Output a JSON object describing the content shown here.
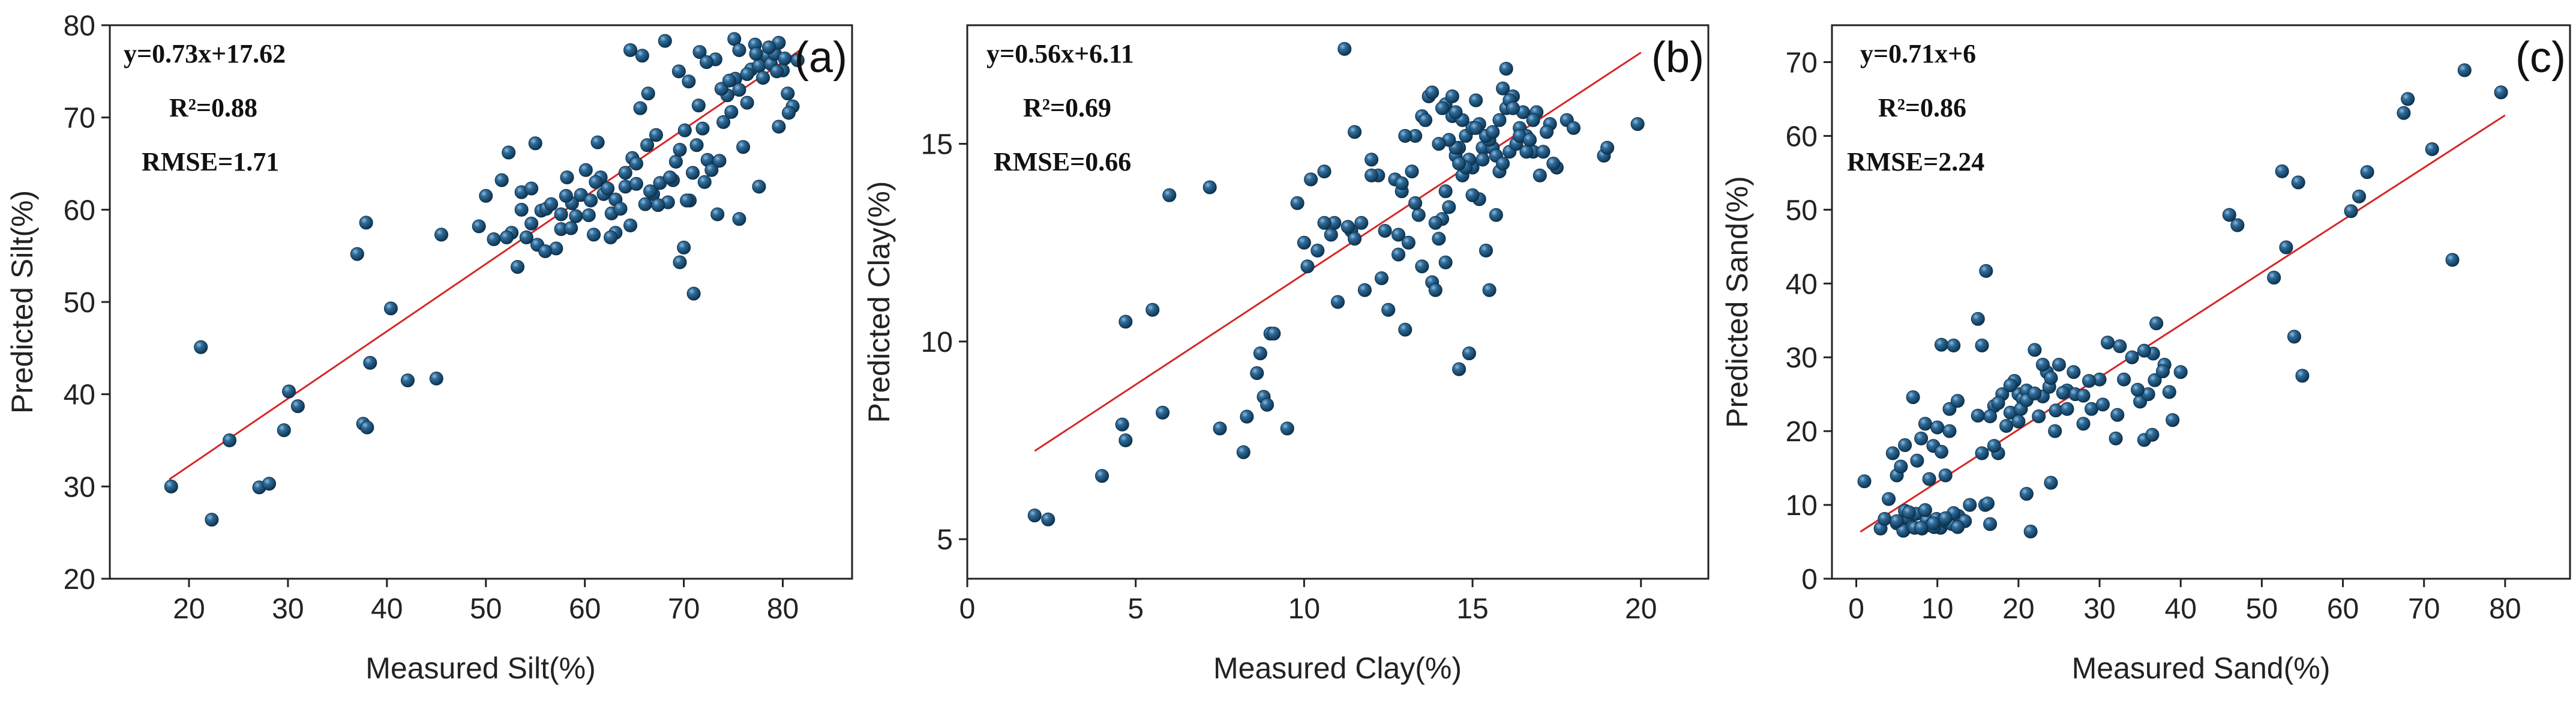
{
  "chart_data": [
    {
      "type": "scatter",
      "panel_label": "(a)",
      "xlabel": "Measured Silt(%)",
      "ylabel": "Predicted Silt(%)",
      "xlim": [
        12,
        87
      ],
      "ylim": [
        20,
        80
      ],
      "xticks": [
        20,
        30,
        40,
        50,
        60,
        70,
        80
      ],
      "yticks": [
        20,
        30,
        40,
        50,
        60,
        70,
        80
      ],
      "equation": "y=0.73x+17.62",
      "r2": "R²=0.88",
      "rmse": "RMSE=1.71",
      "fit": {
        "x": [
          18,
          82
        ],
        "y": [
          30.76,
          77.48
        ]
      },
      "points": {
        "x": [
          18.2,
          21.2,
          22.3,
          24.1,
          27.1,
          28.1,
          29.6,
          30.1,
          31.0,
          37.0,
          37.6,
          38.0,
          37.9,
          38.3,
          40.4,
          42.1,
          45.0,
          45.5,
          49.3,
          50.0,
          50.8,
          51.6,
          52.3,
          52.6,
          53.2,
          53.6,
          54.1,
          54.6,
          55.0,
          55.2,
          55.6,
          56.1,
          56.6,
          57.1,
          57.6,
          58.2,
          58.7,
          59.1,
          59.6,
          60.1,
          60.4,
          60.9,
          61.3,
          61.9,
          62.3,
          62.7,
          63.1,
          63.6,
          64.1,
          64.6,
          64.8,
          65.2,
          65.6,
          66.1,
          66.4,
          66.9,
          67.2,
          67.6,
          68.1,
          68.4,
          68.9,
          69.2,
          69.6,
          70.0,
          70.1,
          70.5,
          71.0,
          71.5,
          71.9,
          72.4,
          72.8,
          73.2,
          73.6,
          74.0,
          74.4,
          74.8,
          75.2,
          75.6,
          76.0,
          76.4,
          76.8,
          77.2,
          77.6,
          78.0,
          78.4,
          78.8,
          79.2,
          79.6,
          80.0,
          80.5,
          81.0,
          81.5,
          64.6,
          65.8,
          69.5,
          71.6,
          72.3,
          73.8,
          74.6,
          75.1,
          75.6,
          76.4,
          77.3,
          78.6,
          79.4,
          80.2,
          53.6,
          54.6,
          57.6,
          58.6,
          60.6,
          61.6,
          63.1,
          66.6,
          67.4,
          68.6,
          69.6,
          70.6,
          73.4,
          75.6,
          77.6,
          79.6,
          80.6,
          52.1,
          56.0,
          58.1,
          61.1,
          62.6,
          64.1,
          65.2,
          66.3,
          70.3,
          70.9,
          71.3,
          72.1
        ],
        "y": [
          30.0,
          45.1,
          26.4,
          35.0,
          29.9,
          30.3,
          36.1,
          40.3,
          38.7,
          55.2,
          36.8,
          36.4,
          58.6,
          43.4,
          49.3,
          41.5,
          41.7,
          57.3,
          58.2,
          61.5,
          56.8,
          63.2,
          66.2,
          57.5,
          53.8,
          61.9,
          57.0,
          62.3,
          67.2,
          56.2,
          59.9,
          60.1,
          60.6,
          55.8,
          57.9,
          63.5,
          60.7,
          59.3,
          61.6,
          64.3,
          59.4,
          57.3,
          67.3,
          61.7,
          62.3,
          59.6,
          61.1,
          60.1,
          62.5,
          58.3,
          65.6,
          62.8,
          71.0,
          60.6,
          72.6,
          61.7,
          68.1,
          62.9,
          78.3,
          60.8,
          63.2,
          65.2,
          54.3,
          55.9,
          68.6,
          73.9,
          50.9,
          71.3,
          68.8,
          65.4,
          64.3,
          76.3,
          65.3,
          69.5,
          72.4,
          70.6,
          74.2,
          73.0,
          66.8,
          71.6,
          75.2,
          77.9,
          75.6,
          74.3,
          76.7,
          75.8,
          76.9,
          78.1,
          75.1,
          72.6,
          71.2,
          76.2,
          77.3,
          76.7,
          75.0,
          77.1,
          76.0,
          73.1,
          74.0,
          78.5,
          77.3,
          74.7,
          76.9,
          77.6,
          75.0,
          76.4,
          60.0,
          58.5,
          59.5,
          58.0,
          61.0,
          63.5,
          57.5,
          62.0,
          60.5,
          63.5,
          66.5,
          61.0,
          59.5,
          59.0,
          62.5,
          69.0,
          70.5,
          57.0,
          55.5,
          61.5,
          63.0,
          57.0,
          64.0,
          65.0,
          67.0,
          61.0,
          64.0,
          67.0,
          63.0
        ]
      }
    },
    {
      "type": "scatter",
      "panel_label": "(b)",
      "xlabel": "Measured Clay(%)",
      "ylabel": "Predicted Clay(%)",
      "xlim": [
        0,
        22
      ],
      "ylim": [
        4,
        18
      ],
      "xticks": [
        0,
        5,
        10,
        15,
        20
      ],
      "yticks": [
        5,
        10,
        15
      ],
      "equation": "y=0.56x+6.11",
      "r2": "R²=0.69",
      "rmse": "RMSE=0.66",
      "fit": {
        "x": [
          2,
          20
        ],
        "y": [
          7.23,
          17.31
        ]
      },
      "points": {
        "x": [
          2.0,
          2.4,
          4.0,
          4.6,
          4.7,
          4.7,
          5.5,
          5.8,
          6.0,
          7.2,
          7.5,
          8.2,
          8.3,
          8.6,
          8.7,
          8.8,
          8.9,
          9.0,
          9.1,
          9.5,
          9.8,
          10.0,
          10.1,
          10.2,
          10.4,
          10.6,
          10.8,
          11.0,
          11.2,
          11.4,
          11.5,
          11.7,
          12.0,
          12.3,
          12.5,
          12.7,
          12.8,
          12.9,
          13.0,
          13.1,
          13.2,
          13.3,
          13.4,
          13.5,
          13.6,
          13.7,
          13.8,
          13.9,
          14.0,
          14.1,
          14.2,
          14.3,
          14.4,
          14.5,
          14.6,
          14.7,
          14.8,
          14.9,
          15.0,
          15.1,
          15.2,
          15.3,
          15.4,
          15.5,
          15.6,
          15.7,
          15.8,
          15.9,
          16.0,
          16.1,
          16.2,
          16.4,
          16.6,
          16.8,
          17.0,
          17.3,
          17.5,
          17.8,
          18.0,
          18.9,
          19.0,
          19.9,
          13.0,
          14.2,
          14.6,
          15.2,
          15.8,
          16.5,
          13.5,
          14.9,
          15.5,
          16.0,
          16.6,
          17.2,
          14.4,
          15.0,
          15.7,
          16.3,
          16.9,
          17.4,
          14.1,
          14.8,
          15.4,
          16.1,
          16.8,
          13.8,
          14.5,
          15.1,
          15.9,
          16.4,
          17.1,
          14.3,
          14.7,
          15.3,
          15.6,
          16.2,
          16.7,
          12.2,
          12.9,
          13.3,
          13.6,
          14.0,
          14.5,
          12.4,
          12.8,
          13.9,
          10.9,
          11.5,
          12.0,
          10.6,
          11.3,
          11.8,
          14.2,
          14.6,
          15.0,
          15.4
        ],
        "y": [
          5.6,
          5.5,
          6.6,
          7.9,
          7.5,
          10.5,
          10.8,
          8.2,
          13.7,
          13.9,
          7.8,
          7.2,
          8.1,
          9.2,
          9.7,
          8.6,
          8.4,
          10.2,
          10.2,
          7.8,
          13.5,
          12.5,
          11.9,
          14.1,
          12.3,
          14.3,
          12.7,
          11.0,
          17.4,
          12.8,
          15.3,
          13.0,
          14.6,
          11.6,
          10.8,
          14.1,
          12.7,
          13.8,
          10.3,
          12.5,
          14.3,
          15.2,
          13.2,
          11.9,
          15.6,
          16.2,
          11.5,
          11.3,
          12.6,
          13.1,
          12.0,
          13.4,
          15.7,
          14.7,
          9.3,
          14.2,
          15.2,
          9.7,
          14.4,
          16.1,
          13.6,
          14.9,
          15.2,
          11.3,
          14.9,
          13.2,
          15.6,
          16.4,
          16.9,
          14.8,
          16.2,
          15.4,
          15.2,
          14.8,
          14.2,
          15.5,
          14.4,
          15.6,
          15.4,
          14.7,
          14.9,
          15.5,
          15.2,
          16.0,
          14.9,
          15.5,
          14.3,
          15.8,
          15.7,
          14.6,
          15.1,
          15.9,
          14.8,
          15.3,
          16.2,
          15.4,
          14.7,
          15.0,
          15.8,
          14.5,
          15.9,
          14.4,
          15.2,
          16.1,
          15.6,
          16.3,
          14.9,
          15.4,
          14.5,
          15.2,
          14.8,
          15.1,
          15.6,
          14.6,
          15.3,
          15.9,
          15.1,
          14.2,
          14.0,
          13.5,
          15.6,
          15.0,
          15.8,
          12.8,
          12.2,
          13.0,
          13.0,
          12.6,
          14.2,
          13.0,
          12.9,
          11.3,
          13.8,
          14.5,
          13.7,
          12.3
        ],
        "note": "approximate"
      }
    },
    {
      "type": "scatter",
      "panel_label": "(c)",
      "xlabel": "Measured Sand(%)",
      "ylabel": "Predicted Sand(%)",
      "xlim": [
        -3,
        88
      ],
      "ylim": [
        0,
        75
      ],
      "xticks": [
        0,
        10,
        20,
        30,
        40,
        50,
        60,
        70,
        80
      ],
      "yticks": [
        0,
        10,
        20,
        30,
        40,
        50,
        60,
        70
      ],
      "equation": "y=0.71x+6",
      "r2": "R²=0.86",
      "rmse": "RMSE=2.24",
      "fit": {
        "x": [
          0.5,
          80
        ],
        "y": [
          6.36,
          62.8
        ]
      },
      "points": {
        "x": [
          1.0,
          3.0,
          4.0,
          4.5,
          5.0,
          5.5,
          6.0,
          6.5,
          7.0,
          7.5,
          8.0,
          8.5,
          9.0,
          9.5,
          10.0,
          10.5,
          11.0,
          11.5,
          12.0,
          12.5,
          13.0,
          5.0,
          5.8,
          6.3,
          7.0,
          7.4,
          8.1,
          8.7,
          9.2,
          9.9,
          10.4,
          11.1,
          11.8,
          12.6,
          13.4,
          6.0,
          7.2,
          8.5,
          9.6,
          10.8,
          12.0,
          3.5,
          5.0,
          6.5,
          8.0,
          9.5,
          11.0,
          12.5,
          14.0,
          15.0,
          15.5,
          16.0,
          16.5,
          17.0,
          17.5,
          18.0,
          18.5,
          19.0,
          19.5,
          20.0,
          20.5,
          21.0,
          21.5,
          22.0,
          22.5,
          23.0,
          23.5,
          24.0,
          24.5,
          25.0,
          26.0,
          27.0,
          28.0,
          29.0,
          30.0,
          31.0,
          32.0,
          33.0,
          34.0,
          35.0,
          36.0,
          37.0,
          38.0,
          39.0,
          40.0,
          15.5,
          16.5,
          21.0,
          23.0,
          32.5,
          35.5,
          36.5,
          17.0,
          15.9,
          16.2,
          36.6,
          46.0,
          47.0,
          51.5,
          52.5,
          53.0,
          54.0,
          54.5,
          55.0,
          61.0,
          62.0,
          63.0,
          67.5,
          68.0,
          71.0,
          73.5,
          75.0,
          79.5,
          10.5,
          11.5,
          15.0,
          17.5,
          19.0,
          20.3,
          21.0,
          23.8,
          24.6,
          25.5,
          26.8,
          28.7,
          30.4,
          32.2,
          34.7,
          35.5,
          36.8,
          37.8,
          38.6,
          20.0,
          22.0,
          24.0,
          26.0,
          28.0
        ],
        "y": [
          13.2,
          6.8,
          10.8,
          17.0,
          14.0,
          15.2,
          18.1,
          7.5,
          24.6,
          16.0,
          19.0,
          21.0,
          13.5,
          18.0,
          20.5,
          31.7,
          14.0,
          23.0,
          31.6,
          24.1,
          8.0,
          7.5,
          6.5,
          8.3,
          7.0,
          8.8,
          6.8,
          7.9,
          7.2,
          8.1,
          6.9,
          7.7,
          7.4,
          8.5,
          7.8,
          9.2,
          6.9,
          9.3,
          7.0,
          8.0,
          8.9,
          8.1,
          7.8,
          9.0,
          6.9,
          7.5,
          8.2,
          7.0,
          10.0,
          35.2,
          31.6,
          41.7,
          7.4,
          23.4,
          17.0,
          25.0,
          20.7,
          22.5,
          26.8,
          25.0,
          24.4,
          11.5,
          6.4,
          31.0,
          22.0,
          24.7,
          28.0,
          13.0,
          20.0,
          29.0,
          25.5,
          25.0,
          21.0,
          23.0,
          27.0,
          32.0,
          19.0,
          27.0,
          30.0,
          24.0,
          25.0,
          34.6,
          29.0,
          21.5,
          28.0,
          17.0,
          22.0,
          25.5,
          29.0,
          31.5,
          18.8,
          19.5,
          18.0,
          10.0,
          10.2,
          30.5,
          49.3,
          47.9,
          40.8,
          55.2,
          44.9,
          32.8,
          53.7,
          27.5,
          49.8,
          51.8,
          55.1,
          63.1,
          65.0,
          58.2,
          43.2,
          68.9,
          65.9,
          17.2,
          20.0,
          22.1,
          23.8,
          26.2,
          23.0,
          24.2,
          26.0,
          22.8,
          25.2,
          28.0,
          26.8,
          23.6,
          22.2,
          25.6,
          30.9,
          26.9,
          28.1,
          25.3,
          21.3,
          25.1,
          27.2,
          23.0,
          24.8
        ],
        "note": "approximate"
      }
    }
  ],
  "colors": {
    "point_fill": "#1b4f72",
    "point_highlight": "#6a9cc0",
    "fit_line": "#d62728",
    "axis": "#222222"
  }
}
